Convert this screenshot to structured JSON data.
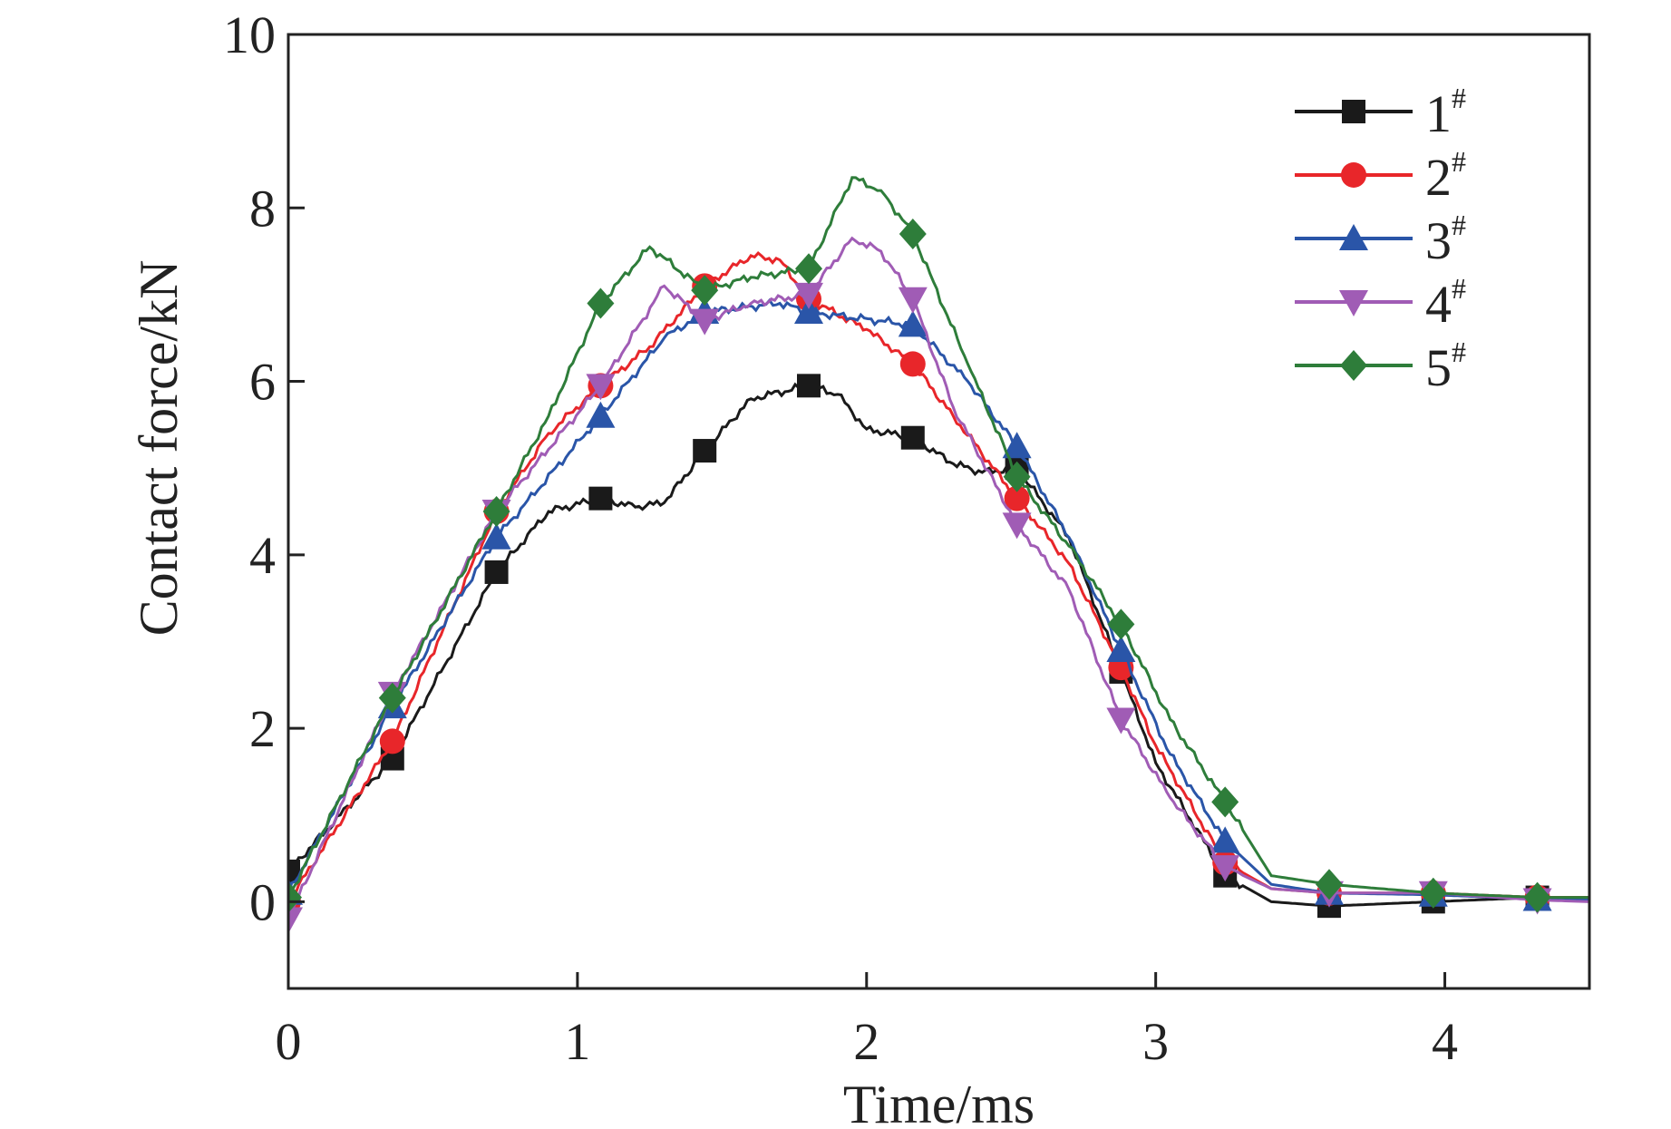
{
  "chart_data": {
    "type": "line",
    "title": "",
    "xlabel": "Time/ms",
    "ylabel": "Contact force/kN",
    "xlim": [
      0,
      4.5
    ],
    "ylim": [
      -1,
      10
    ],
    "xticks": [
      0,
      1,
      2,
      3,
      4
    ],
    "yticks": [
      0,
      2,
      4,
      6,
      8,
      10
    ],
    "grid": false,
    "legend_position": "top-right",
    "marker_interval": 0.36,
    "series": [
      {
        "name": "1",
        "sup": "#",
        "color": "#1a1a1a",
        "marker": "square",
        "x": [
          0,
          0.36,
          0.72,
          0.9,
          1.08,
          1.2,
          1.3,
          1.44,
          1.6,
          1.8,
          1.9,
          2.0,
          2.16,
          2.3,
          2.4,
          2.52,
          2.7,
          2.88,
          3.0,
          3.24,
          3.4,
          3.6,
          3.96,
          4.32,
          4.5
        ],
        "y": [
          0.35,
          1.65,
          3.8,
          4.5,
          4.65,
          4.55,
          4.6,
          5.2,
          5.8,
          5.95,
          5.85,
          5.45,
          5.35,
          5.05,
          4.95,
          5.0,
          4.2,
          2.65,
          1.6,
          0.3,
          0.0,
          -0.05,
          0.0,
          0.05,
          0.05
        ]
      },
      {
        "name": "2",
        "sup": "#",
        "color": "#e8262a",
        "marker": "circle",
        "x": [
          0,
          0.36,
          0.72,
          0.9,
          1.08,
          1.25,
          1.44,
          1.6,
          1.7,
          1.8,
          2.0,
          2.16,
          2.3,
          2.52,
          2.7,
          2.88,
          3.0,
          3.24,
          3.4,
          3.6,
          3.96,
          4.32,
          4.5
        ],
        "y": [
          0,
          1.85,
          4.5,
          5.4,
          5.95,
          6.4,
          7.1,
          7.45,
          7.4,
          6.95,
          6.6,
          6.2,
          5.6,
          4.65,
          3.9,
          2.7,
          1.8,
          0.45,
          0.15,
          0.1,
          0.1,
          0.05,
          0.05
        ]
      },
      {
        "name": "3",
        "sup": "#",
        "color": "#2a55a8",
        "marker": "triangle-up",
        "x": [
          0,
          0.36,
          0.72,
          1.08,
          1.3,
          1.44,
          1.7,
          1.8,
          2.16,
          2.35,
          2.52,
          2.7,
          2.88,
          3.05,
          3.24,
          3.4,
          3.6,
          3.96,
          4.32,
          4.5
        ],
        "y": [
          0.1,
          2.25,
          4.2,
          5.6,
          6.5,
          6.8,
          6.9,
          6.8,
          6.65,
          6.0,
          5.25,
          4.2,
          2.9,
          1.7,
          0.7,
          0.2,
          0.1,
          0.08,
          0.03,
          0.02
        ]
      },
      {
        "name": "4",
        "sup": "#",
        "color": "#a05cb5",
        "marker": "triangle-down",
        "x": [
          0,
          0.36,
          0.5,
          0.72,
          1.08,
          1.3,
          1.44,
          1.6,
          1.8,
          1.95,
          2.05,
          2.16,
          2.3,
          2.52,
          2.7,
          2.88,
          3.05,
          3.24,
          3.4,
          3.6,
          3.96,
          4.32,
          4.5
        ],
        "y": [
          -0.2,
          2.4,
          3.2,
          4.5,
          5.95,
          7.1,
          6.7,
          6.9,
          7.0,
          7.65,
          7.5,
          6.95,
          5.7,
          4.35,
          3.6,
          2.1,
          1.2,
          0.4,
          0.15,
          0.1,
          0.1,
          0.02,
          0.0
        ]
      },
      {
        "name": "5",
        "sup": "#",
        "color": "#2e7d3a",
        "marker": "diamond",
        "x": [
          0,
          0.36,
          0.72,
          0.9,
          1.08,
          1.25,
          1.44,
          1.6,
          1.8,
          1.95,
          2.05,
          2.16,
          2.35,
          2.52,
          2.7,
          2.88,
          3.05,
          3.24,
          3.4,
          3.6,
          3.96,
          4.32,
          4.5
        ],
        "y": [
          0.05,
          2.35,
          4.5,
          5.6,
          6.9,
          7.55,
          7.05,
          7.2,
          7.3,
          8.35,
          8.2,
          7.7,
          6.2,
          4.9,
          4.1,
          3.2,
          2.1,
          1.15,
          0.3,
          0.2,
          0.1,
          0.05,
          0.05
        ]
      }
    ]
  }
}
